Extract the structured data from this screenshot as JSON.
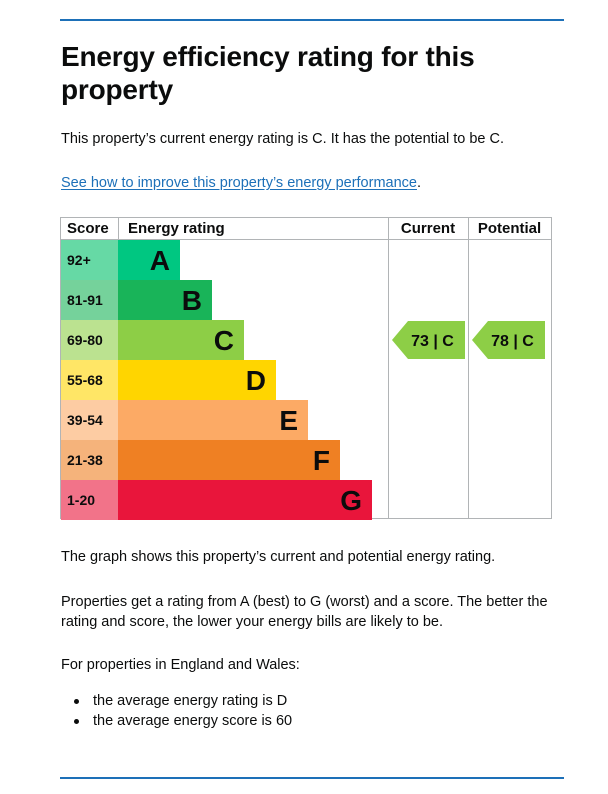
{
  "page": {
    "title": "Energy efficiency rating for this property",
    "current_summary": "This property’s current energy rating is C. It has the potential to be C.",
    "improve_link": "See how to improve this property’s energy performance",
    "improve_link_suffix": ".",
    "graph_description": "The graph shows this property’s current and potential energy rating.",
    "rating_explanation": "Properties get a rating from A (best) to G (worst) and a score. The better the rating and score, the lower your energy bills are likely to be.",
    "region_intro": "For properties in England and Wales:",
    "bullets": [
      "the average energy rating is D",
      "the average energy score is 60"
    ]
  },
  "chart_data": {
    "type": "bar",
    "headers": {
      "score": "Score",
      "energy_rating": "Energy rating",
      "current": "Current",
      "potential": "Potential"
    },
    "bands": [
      {
        "letter": "A",
        "score_range": "92+",
        "min": 92,
        "max": 100,
        "color": "#00c781",
        "score_bg": "#66d9a5"
      },
      {
        "letter": "B",
        "score_range": "81-91",
        "min": 81,
        "max": 91,
        "color": "#19b459",
        "score_bg": "#75d29b"
      },
      {
        "letter": "C",
        "score_range": "69-80",
        "min": 69,
        "max": 80,
        "color": "#8dce46",
        "score_bg": "#bbe290"
      },
      {
        "letter": "D",
        "score_range": "55-68",
        "min": 55,
        "max": 68,
        "color": "#ffd500",
        "score_bg": "#ffe666"
      },
      {
        "letter": "E",
        "score_range": "39-54",
        "min": 39,
        "max": 54,
        "color": "#fcaa65",
        "score_bg": "#fdcca3"
      },
      {
        "letter": "F",
        "score_range": "21-38",
        "min": 21,
        "max": 38,
        "color": "#ef8023",
        "score_bg": "#f5b37b"
      },
      {
        "letter": "G",
        "score_range": "1-20",
        "min": 1,
        "max": 20,
        "color": "#e9153b",
        "score_bg": "#f27389"
      }
    ],
    "current": {
      "score": 73,
      "band": "C",
      "label": "73 | C"
    },
    "potential": {
      "score": 78,
      "band": "C",
      "label": "78 | C"
    },
    "colors": {
      "border": "#b1b4b6",
      "marker": "#8dce46",
      "text": "#0b0c0c"
    }
  }
}
